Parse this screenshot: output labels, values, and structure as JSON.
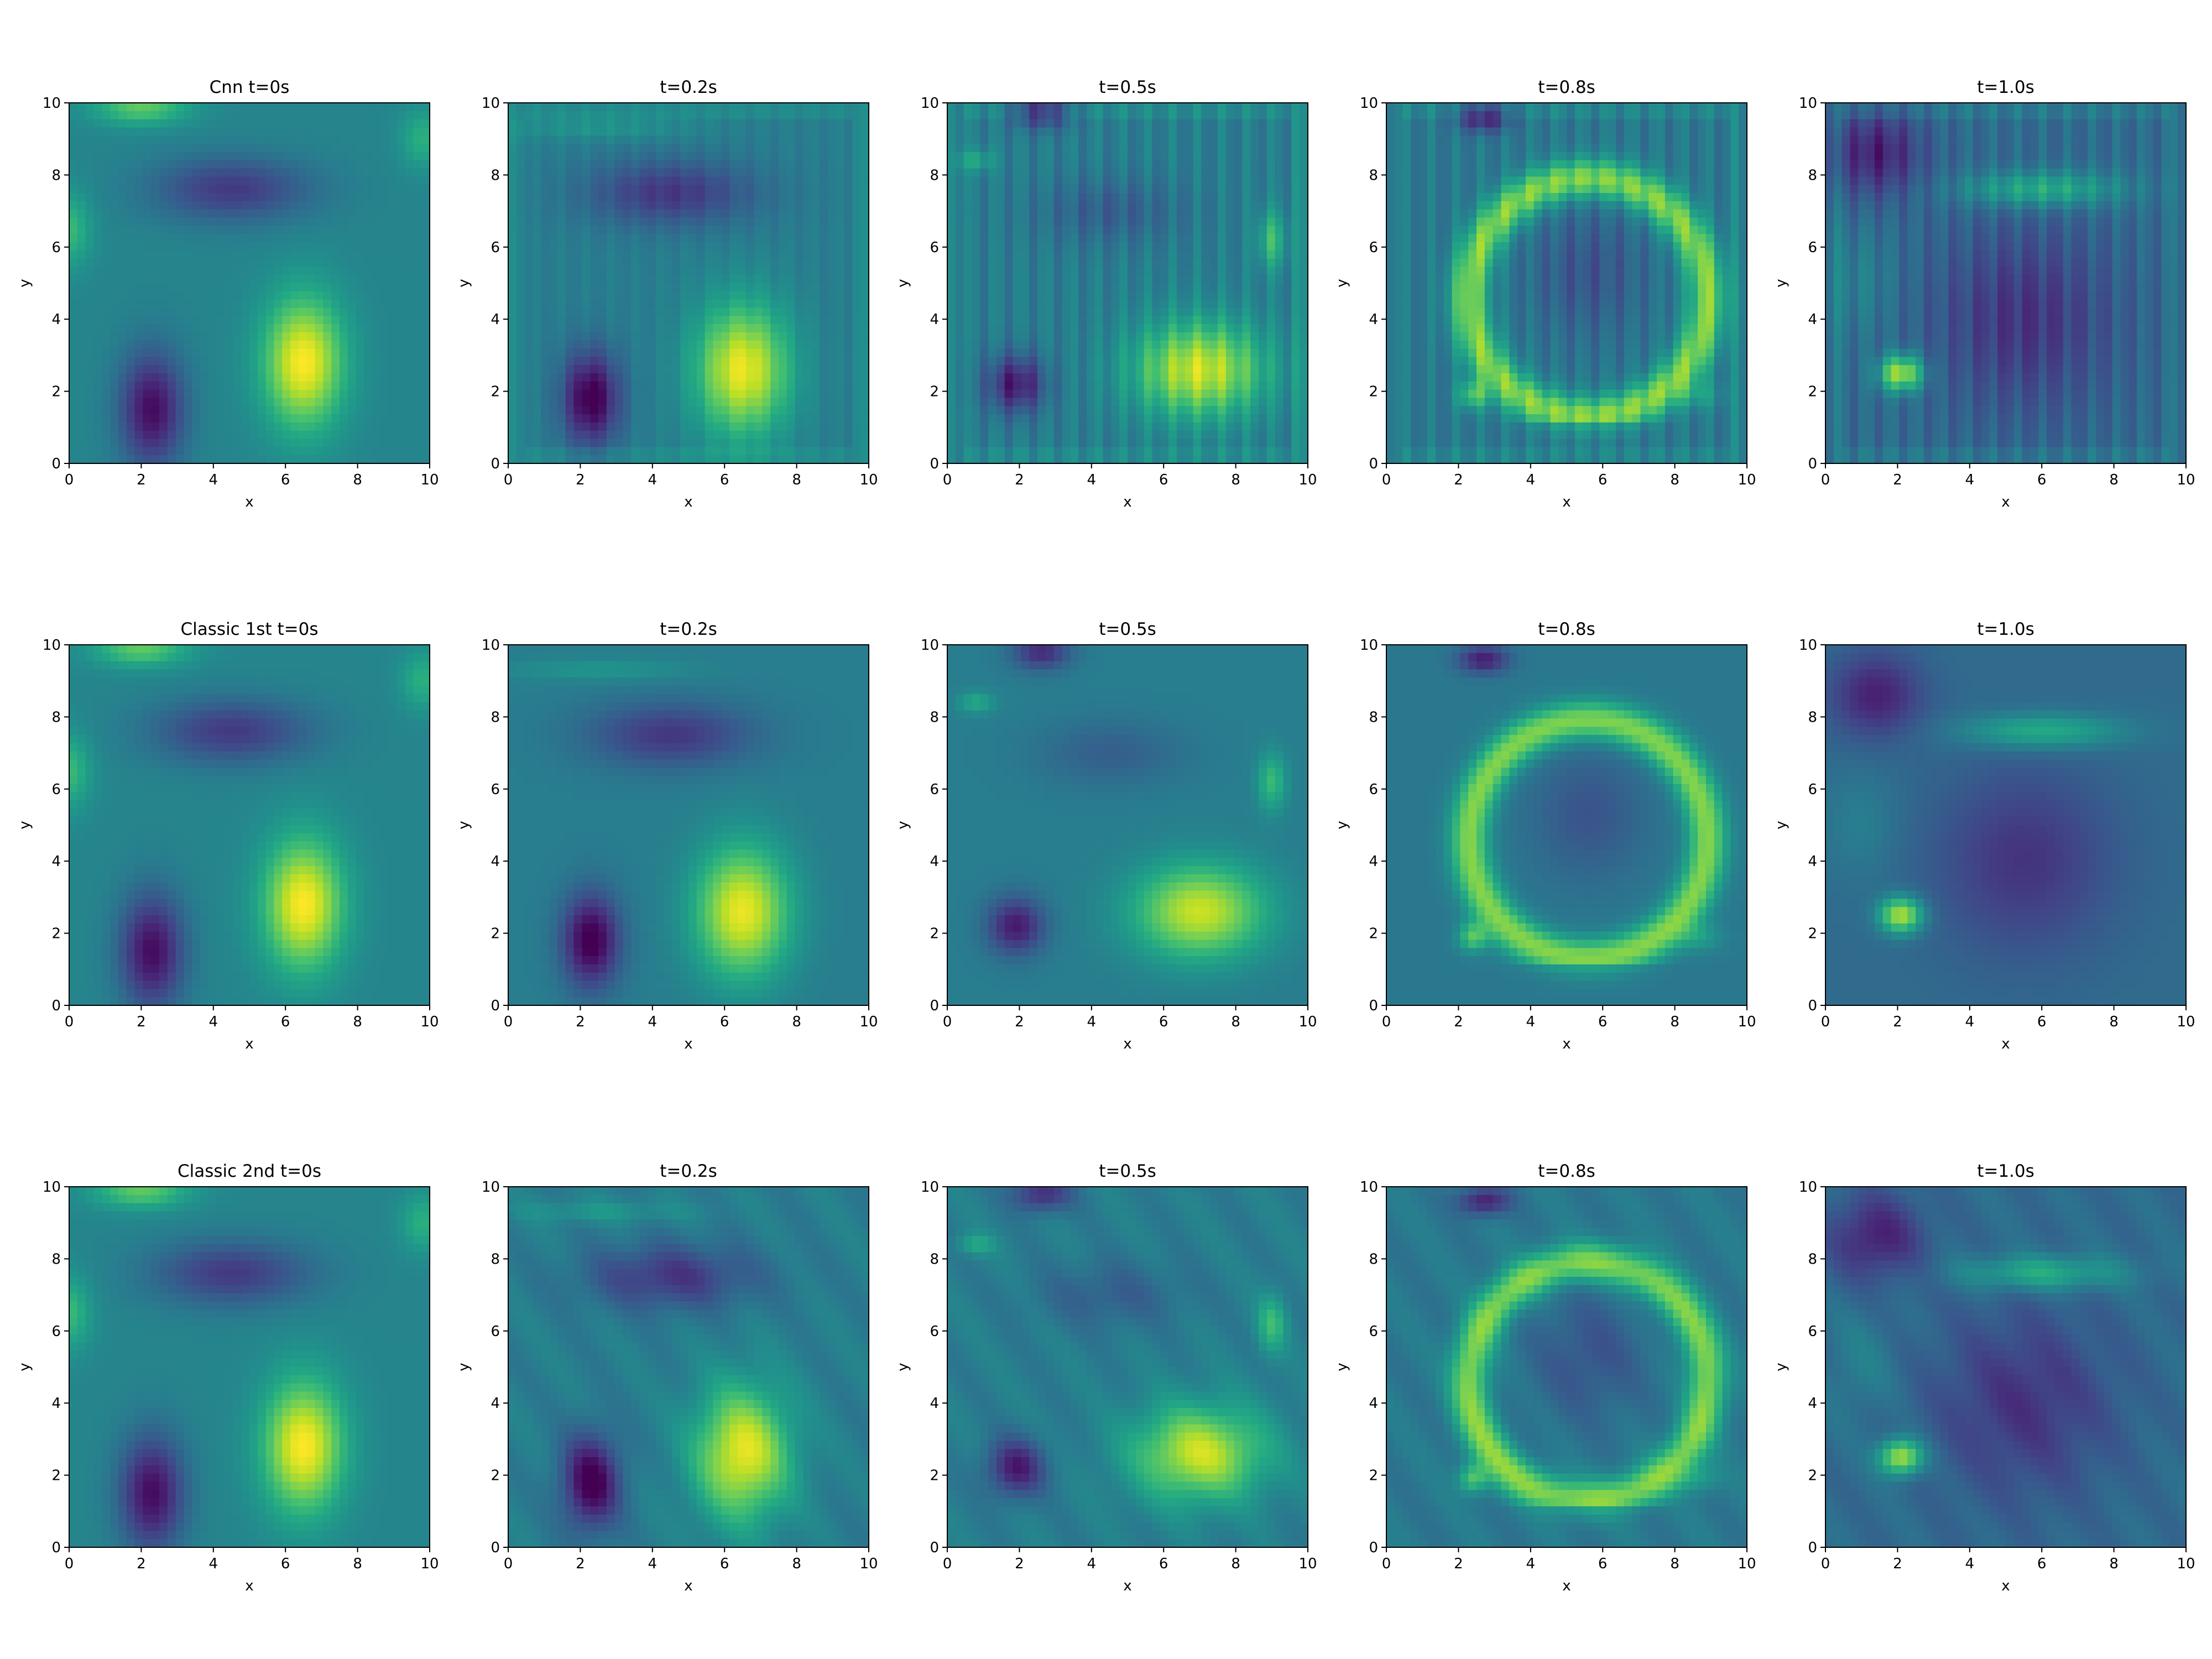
{
  "chart_data": {
    "type": "heatmap",
    "colormap": "viridis",
    "grid": false,
    "xlim": [
      0,
      10
    ],
    "ylim": [
      0,
      10
    ],
    "xticks": [
      "0",
      "2",
      "4",
      "6",
      "8",
      "10"
    ],
    "yticks": [
      "0",
      "2",
      "4",
      "6",
      "8",
      "10"
    ],
    "xlabel": "x",
    "ylabel": "y",
    "rows": [
      {
        "method": "Cnn",
        "panels": [
          {
            "title": "Cnn t=0s",
            "t": 0.0
          },
          {
            "title": "t=0.2s",
            "t": 0.2
          },
          {
            "title": "t=0.5s",
            "t": 0.5
          },
          {
            "title": "t=0.8s",
            "t": 0.8
          },
          {
            "title": "t=1.0s",
            "t": 1.0
          }
        ]
      },
      {
        "method": "Classic 1st",
        "panels": [
          {
            "title": "Classic 1st t=0s",
            "t": 0.0
          },
          {
            "title": "t=0.2s",
            "t": 0.2
          },
          {
            "title": "t=0.5s",
            "t": 0.5
          },
          {
            "title": "t=0.8s",
            "t": 0.8
          },
          {
            "title": "t=1.0s",
            "t": 1.0
          }
        ]
      },
      {
        "method": "Classic 2nd",
        "panels": [
          {
            "title": "Classic 2nd t=0s",
            "t": 0.0
          },
          {
            "title": "t=0.2s",
            "t": 0.2
          },
          {
            "title": "t=0.5s",
            "t": 0.5
          },
          {
            "title": "t=0.8s",
            "t": 0.8
          },
          {
            "title": "t=1.0s",
            "t": 1.0
          }
        ]
      }
    ]
  }
}
